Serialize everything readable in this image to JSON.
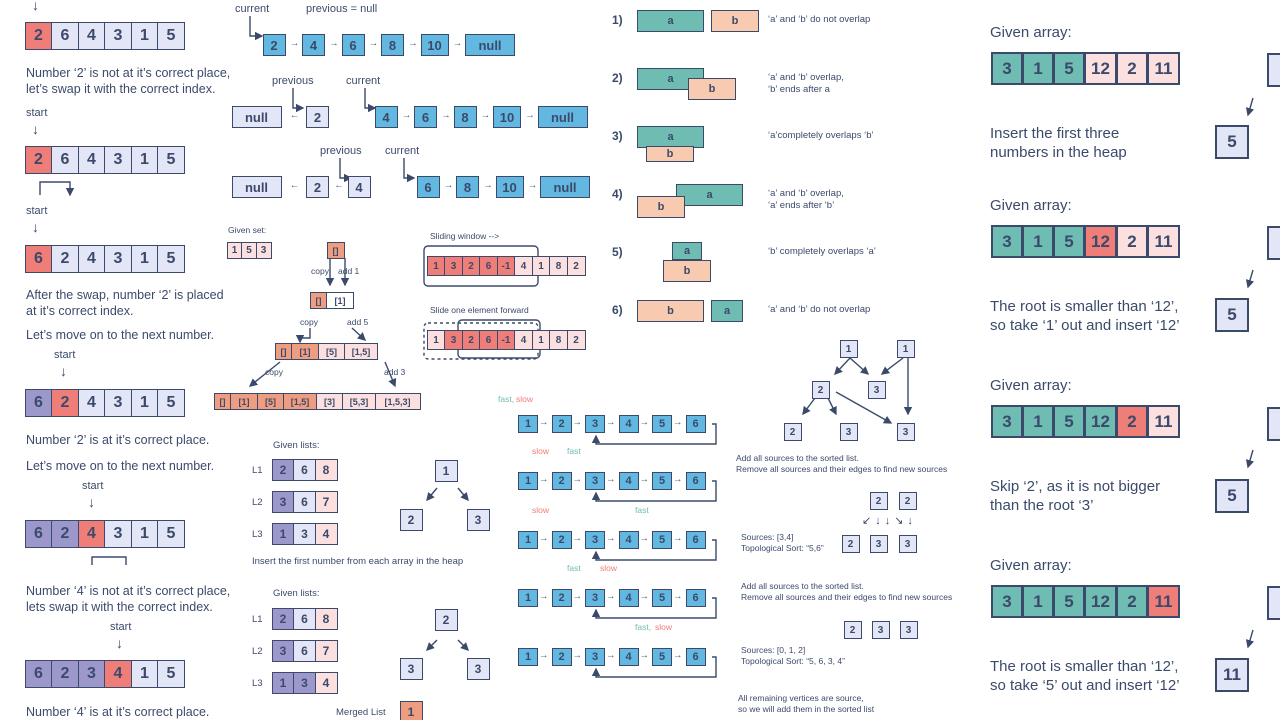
{
  "cyclic": {
    "arr1": [
      "2",
      "6",
      "4",
      "3",
      "1",
      "5"
    ],
    "t1": "Number ‘2’ is not at it’s correct place,",
    "t1b": "let’s swap it with the correct index.",
    "start": "start",
    "arr2": [
      "2",
      "6",
      "4",
      "3",
      "1",
      "5"
    ],
    "arr3": [
      "6",
      "2",
      "4",
      "3",
      "1",
      "5"
    ],
    "t2": "After the swap, number ‘2’ is placed",
    "t2b": "at it’s correct index.",
    "t3": "Let’s move on to the next number.",
    "arr4": [
      "6",
      "2",
      "4",
      "3",
      "1",
      "5"
    ],
    "t4": "Number ‘2’ is at it’s correct place.",
    "t5": "Let’s move on to the next number.",
    "arr5": [
      "6",
      "2",
      "4",
      "3",
      "1",
      "5"
    ],
    "t6": "Number ‘4’ is not at it’s correct place,",
    "t6b": "lets swap it with the correct index.",
    "arr6": [
      "6",
      "2",
      "3",
      "4",
      "1",
      "5"
    ],
    "t7": "Number ‘4’ is at it’s correct place."
  },
  "reverse": {
    "current": "current",
    "previous": "previous",
    "prev_null": "previous = null",
    "list1": [
      "2",
      "4",
      "6",
      "8",
      "10",
      "null"
    ],
    "null": "null",
    "two": "2",
    "four": "4",
    "list2": [
      "4",
      "6",
      "8",
      "10",
      "null"
    ],
    "list3": [
      "6",
      "8",
      "10",
      "null"
    ]
  },
  "subsets": {
    "given": "Given set:",
    "set": [
      "1",
      "5",
      "3"
    ],
    "empty": "[]",
    "copy": "copy",
    "add1": "add 1",
    "add5": "add 5",
    "add3": "add 3",
    "l2": [
      "[]",
      "[1]"
    ],
    "l3": [
      "[]",
      "[1]",
      "[5]",
      "[1,5]"
    ],
    "l4": [
      "[]",
      "[1]",
      "[5]",
      "[1,5]",
      "[3]",
      "[5,3]",
      "[1,5,3]"
    ]
  },
  "sliding": {
    "label1": "Sliding window -->",
    "label2": "Slide one element forward",
    "arr": [
      "1",
      "3",
      "2",
      "6",
      "-1",
      "4",
      "1",
      "8",
      "2"
    ]
  },
  "merge": {
    "given": "Given lists:",
    "L1": "L1",
    "L2": "L2",
    "L3": "L3",
    "a1": [
      "2",
      "6",
      "8"
    ],
    "a2": [
      "3",
      "6",
      "7"
    ],
    "a3": [
      "1",
      "3",
      "4"
    ],
    "heap1": [
      "1",
      "2",
      "3"
    ],
    "insert": "Insert the first number from each array in the heap",
    "b1": [
      "2",
      "6",
      "8"
    ],
    "b2": [
      "3",
      "6",
      "7"
    ],
    "b3": [
      "1",
      "3",
      "4"
    ],
    "heap2": [
      "2",
      "3",
      "3"
    ],
    "merged": "Merged List",
    "m1": "1"
  },
  "fastslow": {
    "fast": "fast,",
    "slow": "slow",
    "slow2": "slow",
    "fast2": "fast",
    "fastslow": "fast, slow",
    "nodes": [
      "1",
      "2",
      "3",
      "4",
      "5",
      "6"
    ]
  },
  "intervals": {
    "items": [
      {
        "n": "1)",
        "a": "a",
        "b": "b",
        "t": "‘a’ and ‘b’ do not overlap"
      },
      {
        "n": "2)",
        "a": "a",
        "b": "b",
        "t": "‘a’ and ‘b’ overlap,",
        "t2": "‘b’ ends after a"
      },
      {
        "n": "3)",
        "a": "a",
        "b": "b",
        "t": "‘a’completely overlaps ‘b’"
      },
      {
        "n": "4)",
        "a": "a",
        "b": "b",
        "t": "‘a’ and ‘b’ overlap,",
        "t2": "‘a’ ends after ‘b’"
      },
      {
        "n": "5)",
        "a": "a",
        "b": "b",
        "t": "‘b’ completely overlaps ‘a’"
      },
      {
        "n": "6)",
        "a": "a",
        "b": "b",
        "t": "‘a’ and ‘b’ do not overlap"
      }
    ]
  },
  "topo": {
    "g": [
      "1",
      "1",
      "2",
      "3",
      "2",
      "3",
      "3"
    ],
    "t1": "Add all sources to the sorted list.",
    "t1b": "Remove all sources and their edges to find new sources",
    "g2": [
      "2",
      "2",
      "2",
      "3",
      "3"
    ],
    "s1": "Sources: [3,4]",
    "s1b": "Topological Sort: “5,6”",
    "t2": "Add all sources to the sorted list.",
    "t2b": "Remove all sources and their edges to find new sources",
    "g3": [
      "2",
      "3",
      "3"
    ],
    "s2": "Sources: [0, 1, 2]",
    "s2b": "Topological Sort: “5, 6, 3, 4”",
    "t3": "All remaining vertices are source,",
    "t3b": "so we will add them in the sorted list"
  },
  "topk": {
    "given": "Given array:",
    "arr": [
      "3",
      "1",
      "5",
      "12",
      "2",
      "11"
    ],
    "i1": "Insert the first three",
    "i1b": "numbers in the heap",
    "i2": "The root is smaller than ‘12’,",
    "i2b": "so take ‘1’ out and insert ‘12’",
    "i3": "Skip ‘2’, as it is not bigger",
    "i3b": "than the root ‘3’",
    "i4": "The root is smaller than ‘12’,",
    "i4b": "so take ‘5’ out and insert ‘12’",
    "h1": "5",
    "h2": "5",
    "h3": "5",
    "h4": "11"
  }
}
